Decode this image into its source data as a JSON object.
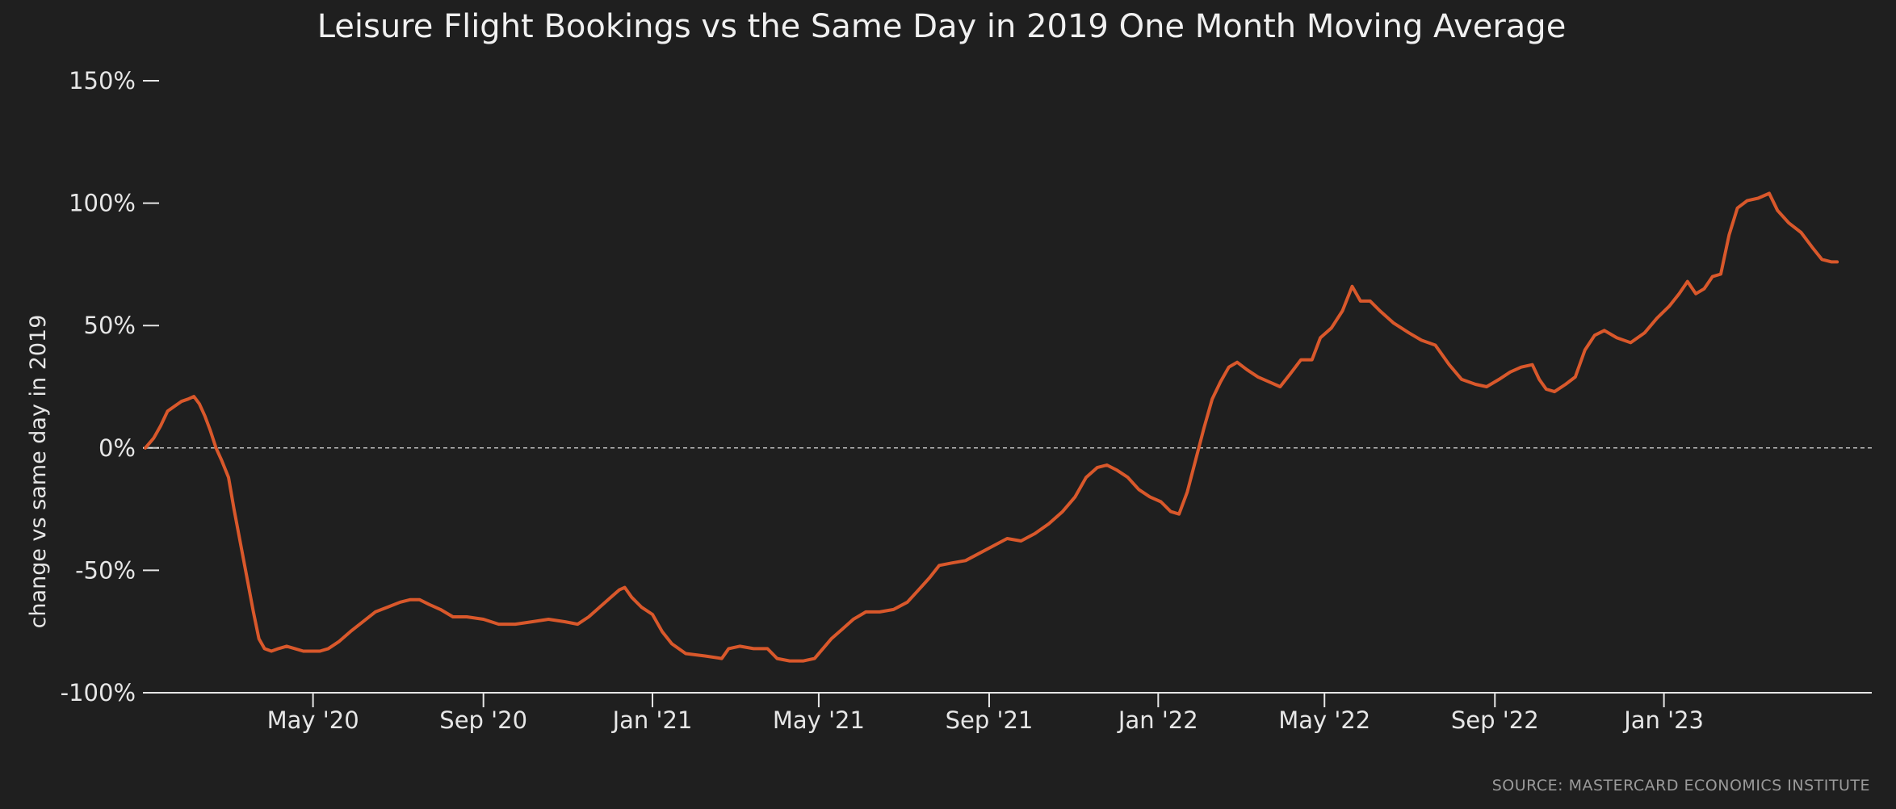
{
  "chart_data": {
    "type": "line",
    "title": "Leisure Flight Bookings vs the Same Day in 2019 One Month Moving Average",
    "xlabel": "",
    "ylabel": "change vs same day in 2019",
    "source": "SOURCE: MASTERCARD ECONOMICS INSTITUTE",
    "xlim": [
      "2020-01-01",
      "2023-05-31"
    ],
    "ylim": [
      -100,
      150
    ],
    "y_ticks": [
      {
        "value": -100,
        "label": "-100%"
      },
      {
        "value": -50,
        "label": "-50%"
      },
      {
        "value": 0,
        "label": "0%"
      },
      {
        "value": 50,
        "label": "50%"
      },
      {
        "value": 100,
        "label": "100%"
      },
      {
        "value": 150,
        "label": "150%"
      }
    ],
    "x_ticks": [
      {
        "date": "2020-05-01",
        "label": "May '20"
      },
      {
        "date": "2020-09-01",
        "label": "Sep '20"
      },
      {
        "date": "2021-01-01",
        "label": "Jan '21"
      },
      {
        "date": "2021-05-01",
        "label": "May '21"
      },
      {
        "date": "2021-09-01",
        "label": "Sep '21"
      },
      {
        "date": "2022-01-01",
        "label": "Jan '22"
      },
      {
        "date": "2022-05-01",
        "label": "May '22"
      },
      {
        "date": "2022-09-01",
        "label": "Sep '22"
      },
      {
        "date": "2023-01-01",
        "label": "Jan '23"
      }
    ],
    "grid": false,
    "zero_line": "dashed",
    "series": [
      {
        "color": "#d9582b",
        "points": [
          [
            "2020-01-01",
            0
          ],
          [
            "2020-01-07",
            4
          ],
          [
            "2020-01-12",
            9
          ],
          [
            "2020-01-17",
            15
          ],
          [
            "2020-01-22",
            17
          ],
          [
            "2020-01-27",
            19
          ],
          [
            "2020-02-01",
            20
          ],
          [
            "2020-02-05",
            21
          ],
          [
            "2020-02-09",
            18
          ],
          [
            "2020-02-13",
            13
          ],
          [
            "2020-02-17",
            7
          ],
          [
            "2020-02-21",
            0
          ],
          [
            "2020-02-25",
            -5
          ],
          [
            "2020-03-01",
            -12
          ],
          [
            "2020-03-05",
            -25
          ],
          [
            "2020-03-10",
            -40
          ],
          [
            "2020-03-15",
            -55
          ],
          [
            "2020-03-19",
            -67
          ],
          [
            "2020-03-23",
            -78
          ],
          [
            "2020-03-27",
            -82
          ],
          [
            "2020-04-01",
            -83
          ],
          [
            "2020-04-06",
            -82
          ],
          [
            "2020-04-12",
            -81
          ],
          [
            "2020-04-18",
            -82
          ],
          [
            "2020-04-24",
            -83
          ],
          [
            "2020-04-30",
            -83
          ],
          [
            "2020-05-06",
            -83
          ],
          [
            "2020-05-12",
            -82
          ],
          [
            "2020-05-20",
            -79
          ],
          [
            "2020-05-28",
            -75
          ],
          [
            "2020-06-06",
            -71
          ],
          [
            "2020-06-15",
            -67
          ],
          [
            "2020-06-24",
            -65
          ],
          [
            "2020-07-03",
            -63
          ],
          [
            "2020-07-10",
            -62
          ],
          [
            "2020-07-17",
            -62
          ],
          [
            "2020-07-24",
            -64
          ],
          [
            "2020-08-01",
            -66
          ],
          [
            "2020-08-10",
            -69
          ],
          [
            "2020-08-20",
            -69
          ],
          [
            "2020-09-01",
            -70
          ],
          [
            "2020-09-12",
            -72
          ],
          [
            "2020-09-24",
            -72
          ],
          [
            "2020-10-06",
            -71
          ],
          [
            "2020-10-18",
            -70
          ],
          [
            "2020-10-30",
            -71
          ],
          [
            "2020-11-08",
            -72
          ],
          [
            "2020-11-16",
            -69
          ],
          [
            "2020-11-24",
            -65
          ],
          [
            "2020-12-02",
            -61
          ],
          [
            "2020-12-08",
            -58
          ],
          [
            "2020-12-12",
            -57
          ],
          [
            "2020-12-17",
            -61
          ],
          [
            "2020-12-24",
            -65
          ],
          [
            "2021-01-01",
            -68
          ],
          [
            "2021-01-08",
            -75
          ],
          [
            "2021-01-15",
            -80
          ],
          [
            "2021-01-25",
            -84
          ],
          [
            "2021-02-08",
            -85
          ],
          [
            "2021-02-20",
            -86
          ],
          [
            "2021-02-25",
            -82
          ],
          [
            "2021-03-05",
            -81
          ],
          [
            "2021-03-15",
            -82
          ],
          [
            "2021-03-25",
            -82
          ],
          [
            "2021-04-01",
            -86
          ],
          [
            "2021-04-10",
            -87
          ],
          [
            "2021-04-20",
            -87
          ],
          [
            "2021-04-28",
            -86
          ],
          [
            "2021-05-04",
            -82
          ],
          [
            "2021-05-10",
            -78
          ],
          [
            "2021-05-18",
            -74
          ],
          [
            "2021-05-26",
            -70
          ],
          [
            "2021-06-04",
            -67
          ],
          [
            "2021-06-14",
            -67
          ],
          [
            "2021-06-24",
            -66
          ],
          [
            "2021-07-04",
            -63
          ],
          [
            "2021-07-12",
            -58
          ],
          [
            "2021-07-20",
            -53
          ],
          [
            "2021-07-27",
            -48
          ],
          [
            "2021-08-05",
            -47
          ],
          [
            "2021-08-15",
            -46
          ],
          [
            "2021-08-25",
            -43
          ],
          [
            "2021-09-04",
            -40
          ],
          [
            "2021-09-14",
            -37
          ],
          [
            "2021-09-24",
            -38
          ],
          [
            "2021-10-04",
            -35
          ],
          [
            "2021-10-14",
            -31
          ],
          [
            "2021-10-24",
            -26
          ],
          [
            "2021-11-02",
            -20
          ],
          [
            "2021-11-10",
            -12
          ],
          [
            "2021-11-18",
            -8
          ],
          [
            "2021-11-25",
            -7
          ],
          [
            "2021-12-02",
            -9
          ],
          [
            "2021-12-10",
            -12
          ],
          [
            "2021-12-18",
            -17
          ],
          [
            "2021-12-26",
            -20
          ],
          [
            "2022-01-03",
            -22
          ],
          [
            "2022-01-10",
            -26
          ],
          [
            "2022-01-16",
            -27
          ],
          [
            "2022-01-22",
            -18
          ],
          [
            "2022-01-28",
            -5
          ],
          [
            "2022-02-03",
            8
          ],
          [
            "2022-02-09",
            20
          ],
          [
            "2022-02-15",
            27
          ],
          [
            "2022-02-21",
            33
          ],
          [
            "2022-02-27",
            35
          ],
          [
            "2022-03-06",
            32
          ],
          [
            "2022-03-14",
            29
          ],
          [
            "2022-03-22",
            27
          ],
          [
            "2022-03-30",
            25
          ],
          [
            "2022-04-06",
            30
          ],
          [
            "2022-04-14",
            36
          ],
          [
            "2022-04-22",
            36
          ],
          [
            "2022-04-28",
            45
          ],
          [
            "2022-05-06",
            49
          ],
          [
            "2022-05-14",
            56
          ],
          [
            "2022-05-21",
            66
          ],
          [
            "2022-05-27",
            60
          ],
          [
            "2022-06-03",
            60
          ],
          [
            "2022-06-10",
            56
          ],
          [
            "2022-06-20",
            51
          ],
          [
            "2022-07-01",
            47
          ],
          [
            "2022-07-10",
            44
          ],
          [
            "2022-07-20",
            42
          ],
          [
            "2022-07-30",
            34
          ],
          [
            "2022-08-08",
            28
          ],
          [
            "2022-08-18",
            26
          ],
          [
            "2022-08-26",
            25
          ],
          [
            "2022-09-04",
            28
          ],
          [
            "2022-09-12",
            31
          ],
          [
            "2022-09-20",
            33
          ],
          [
            "2022-09-28",
            34
          ],
          [
            "2022-10-03",
            28
          ],
          [
            "2022-10-08",
            24
          ],
          [
            "2022-10-14",
            23
          ],
          [
            "2022-10-22",
            26
          ],
          [
            "2022-10-29",
            29
          ],
          [
            "2022-11-05",
            40
          ],
          [
            "2022-11-12",
            46
          ],
          [
            "2022-11-19",
            48
          ],
          [
            "2022-11-28",
            45
          ],
          [
            "2022-12-08",
            43
          ],
          [
            "2022-12-18",
            47
          ],
          [
            "2022-12-27",
            53
          ],
          [
            "2023-01-05",
            58
          ],
          [
            "2023-01-12",
            63
          ],
          [
            "2023-01-18",
            68
          ],
          [
            "2023-01-24",
            63
          ],
          [
            "2023-01-30",
            65
          ],
          [
            "2023-02-05",
            70
          ],
          [
            "2023-02-11",
            71
          ],
          [
            "2023-02-17",
            87
          ],
          [
            "2023-02-23",
            98
          ],
          [
            "2023-03-02",
            101
          ],
          [
            "2023-03-10",
            102
          ],
          [
            "2023-03-18",
            104
          ],
          [
            "2023-03-24",
            97
          ],
          [
            "2023-04-01",
            92
          ],
          [
            "2023-04-10",
            88
          ],
          [
            "2023-04-18",
            82
          ],
          [
            "2023-04-25",
            77
          ],
          [
            "2023-05-02",
            76
          ],
          [
            "2023-05-06",
            76
          ]
        ]
      }
    ]
  }
}
